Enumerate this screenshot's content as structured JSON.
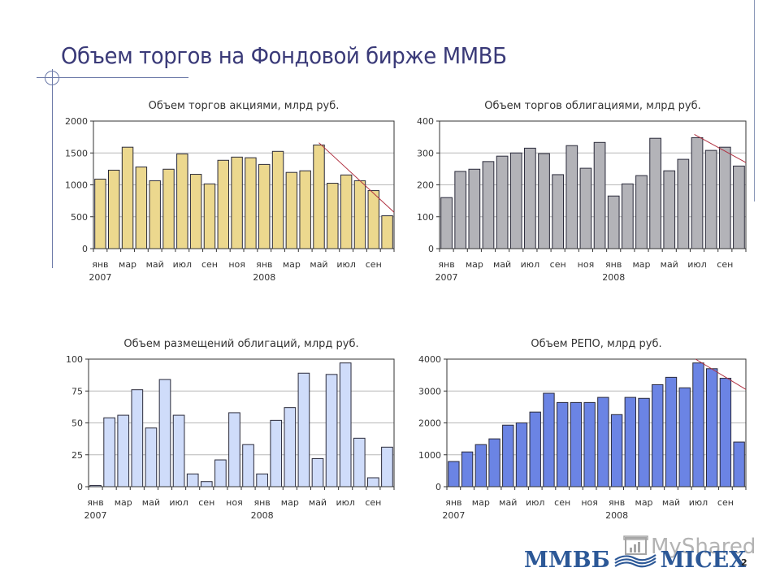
{
  "slide": {
    "title": "Объем торгов на Фондовой бирже ММВБ",
    "page_number": "2",
    "logo": {
      "left": "ММВБ",
      "right": "MICEX",
      "color": "#2c5897"
    },
    "watermark": "MyShared"
  },
  "x_axis": {
    "tick_labels": [
      "янв",
      "мар",
      "май",
      "июл",
      "сен",
      "ноя",
      "янв",
      "мар",
      "май",
      "июл",
      "сен"
    ],
    "tick_label_month_index": [
      0,
      2,
      4,
      6,
      8,
      10,
      12,
      14,
      16,
      18,
      20
    ],
    "year_labels": [
      {
        "label": "2007",
        "month_index": 0
      },
      {
        "label": "2008",
        "month_index": 12
      }
    ]
  },
  "chart_data": [
    {
      "type": "bar",
      "title": "Объем торгов акциями, млрд руб.",
      "xlabel": "",
      "ylabel": "",
      "categories": [
        "янв 2007",
        "фев 2007",
        "мар 2007",
        "апр 2007",
        "май 2007",
        "июн 2007",
        "июл 2007",
        "авг 2007",
        "сен 2007",
        "окт 2007",
        "ноя 2007",
        "дек 2007",
        "янв 2008",
        "фев 2008",
        "мар 2008",
        "апр 2008",
        "май 2008",
        "июн 2008",
        "июл 2008",
        "авг 2008",
        "сен 2008",
        "окт 2008"
      ],
      "values": [
        1090,
        1230,
        1590,
        1280,
        1065,
        1245,
        1485,
        1165,
        1015,
        1385,
        1435,
        1425,
        1320,
        1525,
        1195,
        1220,
        1625,
        1025,
        1155,
        1065,
        910,
        515
      ],
      "ylim": [
        0,
        2000
      ],
      "yticks": [
        0,
        500,
        1000,
        1500,
        2000
      ],
      "grid": true,
      "bar_color": "#ecd88e",
      "trend_line": {
        "from_index": 16,
        "from_value": 1660,
        "to_index": 21.5,
        "to_value": 570,
        "color": "#b03040"
      }
    },
    {
      "type": "bar",
      "title": "Объем торгов облигациями, млрд руб.",
      "xlabel": "",
      "ylabel": "",
      "categories": [
        "янв 2007",
        "фев 2007",
        "мар 2007",
        "апр 2007",
        "май 2007",
        "июн 2007",
        "июл 2007",
        "авг 2007",
        "сен 2007",
        "окт 2007",
        "ноя 2007",
        "дек 2007",
        "янв 2008",
        "фев 2008",
        "мар 2008",
        "апр 2008",
        "май 2008",
        "июн 2008",
        "июл 2008",
        "авг 2008",
        "сен 2008",
        "окт 2008"
      ],
      "values": [
        160,
        242,
        249,
        273,
        290,
        300,
        315,
        298,
        232,
        323,
        252,
        333,
        165,
        203,
        229,
        346,
        244,
        280,
        348,
        308,
        318,
        259
      ],
      "ylim": [
        0,
        400
      ],
      "yticks": [
        0,
        100,
        200,
        300,
        400
      ],
      "grid": true,
      "bar_color": "#b3b3b8",
      "trend_line": {
        "from_index": 17.8,
        "from_value": 358,
        "to_index": 21.5,
        "to_value": 270,
        "color": "#b03040"
      }
    },
    {
      "type": "bar",
      "title": "Объем размещений облигаций, млрд руб.",
      "xlabel": "",
      "ylabel": "",
      "categories": [
        "янв 2007",
        "фев 2007",
        "мар 2007",
        "апр 2007",
        "май 2007",
        "июн 2007",
        "июл 2007",
        "авг 2007",
        "сен 2007",
        "окт 2007",
        "ноя 2007",
        "дек 2007",
        "янв 2008",
        "фев 2008",
        "мар 2008",
        "апр 2008",
        "май 2008",
        "июн 2008",
        "июл 2008",
        "авг 2008",
        "сен 2008",
        "окт 2008"
      ],
      "values": [
        1,
        54,
        56,
        76,
        46,
        84,
        56,
        10,
        4,
        21,
        58,
        33,
        10,
        52,
        62,
        89,
        22,
        88,
        97,
        38,
        7,
        31
      ],
      "ylim": [
        0,
        100
      ],
      "yticks": [
        0,
        25,
        50,
        75,
        100
      ],
      "grid": true,
      "bar_color": "#cfdcfa",
      "trend_line": null
    },
    {
      "type": "bar",
      "title": "Объем РЕПО, млрд руб.",
      "xlabel": "",
      "ylabel": "",
      "categories": [
        "янв 2007",
        "фев 2007",
        "мар 2007",
        "апр 2007",
        "май 2007",
        "июн 2007",
        "июл 2007",
        "авг 2007",
        "сен 2007",
        "окт 2007",
        "ноя 2007",
        "дек 2007",
        "янв 2008",
        "фев 2008",
        "мар 2008",
        "апр 2008",
        "май 2008",
        "июн 2008",
        "июл 2008",
        "авг 2008",
        "сен 2008",
        "окт 2008"
      ],
      "values": [
        790,
        1090,
        1320,
        1500,
        1930,
        2000,
        2340,
        2930,
        2640,
        2640,
        2640,
        2800,
        2260,
        2800,
        2770,
        3200,
        3430,
        3100,
        3880,
        3700,
        3400,
        1400
      ],
      "ylim": [
        0,
        4000
      ],
      "yticks": [
        0,
        1000,
        2000,
        3000,
        4000
      ],
      "grid": true,
      "bar_color": "#6b84e4",
      "trend_line": {
        "from_index": 17.8,
        "from_value": 4000,
        "to_index": 21.5,
        "to_value": 3050,
        "color": "#b03040"
      }
    }
  ]
}
